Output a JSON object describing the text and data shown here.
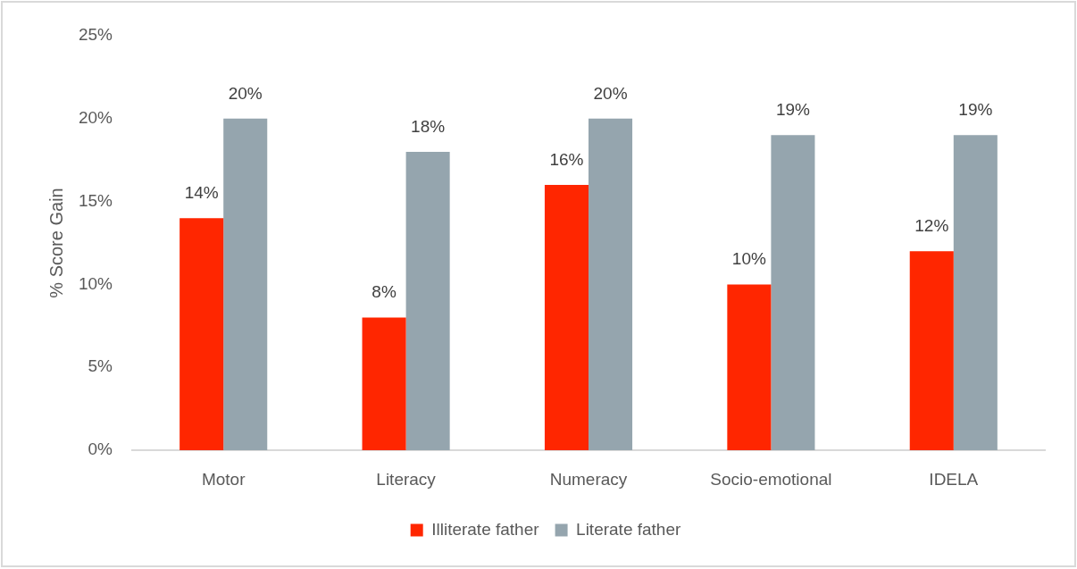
{
  "chart_data": {
    "type": "bar",
    "ylabel": "% Score Gain",
    "categories": [
      "Motor",
      "Literacy",
      "Numeracy",
      "Socio-emotional",
      "IDELA"
    ],
    "series": [
      {
        "name": "Illiterate father",
        "color": "#ff2600",
        "values": [
          14,
          8,
          16,
          10,
          12
        ],
        "value_labels": [
          "14%",
          "8%",
          "16%",
          "10%",
          "12%"
        ]
      },
      {
        "name": "Literate father",
        "color": "#95a5ae",
        "values": [
          20,
          18,
          20,
          19,
          19
        ],
        "value_labels": [
          "20%",
          "18%",
          "20%",
          "19%",
          "19%"
        ]
      }
    ],
    "ylim": [
      0,
      25
    ],
    "yticks": [
      {
        "value": 0,
        "label": "0%"
      },
      {
        "value": 5,
        "label": "5%"
      },
      {
        "value": 10,
        "label": "10%"
      },
      {
        "value": 15,
        "label": "15%"
      },
      {
        "value": 20,
        "label": "20%"
      },
      {
        "value": 25,
        "label": "25%"
      }
    ],
    "grid": false,
    "legend": "bottom"
  }
}
